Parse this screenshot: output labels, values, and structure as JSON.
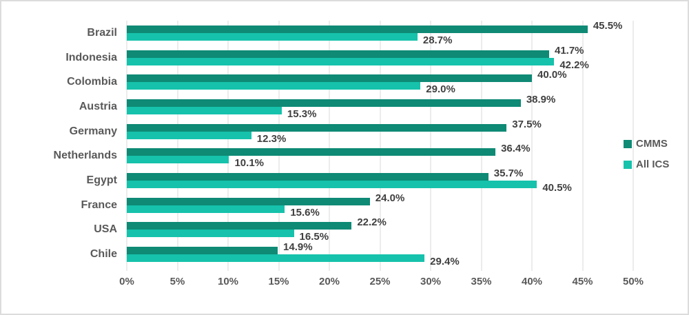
{
  "chart_data": {
    "type": "bar",
    "orientation": "horizontal",
    "title": "",
    "categories": [
      "Brazil",
      "Indonesia",
      "Colombia",
      "Austria",
      "Germany",
      "Netherlands",
      "Egypt",
      "France",
      "USA",
      "Chile"
    ],
    "series": [
      {
        "name": "CMMS",
        "color": "#0e8a75",
        "values": [
          45.5,
          41.7,
          40.0,
          38.9,
          37.5,
          36.4,
          35.7,
          24.0,
          22.2,
          14.9
        ],
        "labels": [
          "45.5%",
          "41.7%",
          "40.0%",
          "38.9%",
          "37.5%",
          "36.4%",
          "35.7%",
          "24.0%",
          "22.2%",
          "14.9%"
        ]
      },
      {
        "name": "All ICS",
        "color": "#16c2ab",
        "values": [
          28.7,
          42.2,
          29.0,
          15.3,
          12.3,
          10.1,
          40.5,
          15.6,
          16.5,
          29.4
        ],
        "labels": [
          "28.7%",
          "42.2%",
          "29.0%",
          "15.3%",
          "12.3%",
          "10.1%",
          "40.5%",
          "15.6%",
          "16.5%",
          "29.4%"
        ]
      }
    ],
    "x_axis": {
      "min": 0,
      "max": 50,
      "ticks": [
        "0%",
        "5%",
        "10%",
        "15%",
        "20%",
        "25%",
        "30%",
        "35%",
        "40%",
        "45%",
        "50%"
      ]
    },
    "legend": {
      "position": "right",
      "items": [
        "CMMS",
        "All ICS"
      ]
    },
    "grid": true,
    "colors": {
      "grid": "#d9d9d9",
      "axis_text": "#595959",
      "data_label": "#404040",
      "background": "#ffffff",
      "border": "#dcdcdc"
    }
  }
}
